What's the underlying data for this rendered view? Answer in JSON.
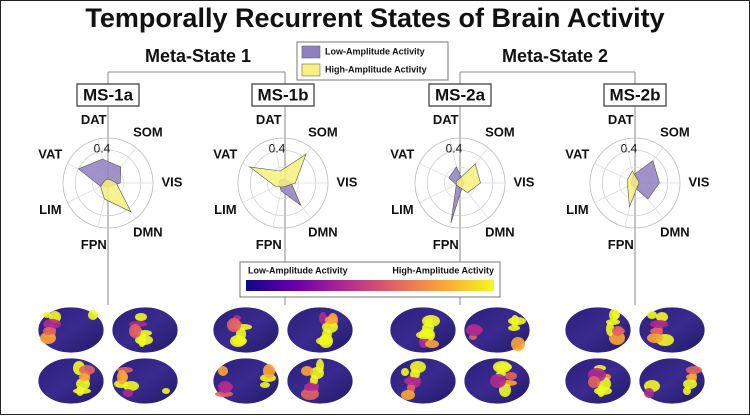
{
  "title": "Temporally Recurrent States of Brain Activity",
  "meta_states": [
    "Meta-State 1",
    "Meta-State 2"
  ],
  "legend": [
    {
      "name": "Low-Amplitude Activity",
      "color": "#9180bf"
    },
    {
      "name": "High-Amplitude Activity",
      "color": "#f6f17e"
    }
  ],
  "colorbar": {
    "low_label": "Low-Amplitude Activity",
    "high_label": "High-Amplitude Activity",
    "colors": [
      "#0d0887",
      "#6a00a8",
      "#b12a90",
      "#e16462",
      "#fca636",
      "#f0f921"
    ]
  },
  "chart_data": [
    {
      "type": "radar",
      "title": "MS-1a",
      "categories": [
        "DAT",
        "SOM",
        "VIS",
        "DMN",
        "FPN",
        "LIM",
        "VAT"
      ],
      "rlim": [
        0,
        0.55
      ],
      "rticks": [
        0.4
      ],
      "series": [
        {
          "color": "#9180bf",
          "values": [
            0.3,
            0.25,
            0.15,
            0.05,
            0.05,
            0.1,
            0.4
          ]
        },
        {
          "color": "#f6f17e",
          "values": [
            0.05,
            0.05,
            0.1,
            0.45,
            0.2,
            0.1,
            0.05
          ]
        }
      ]
    },
    {
      "type": "radar",
      "title": "MS-1b",
      "categories": [
        "DAT",
        "SOM",
        "VIS",
        "DMN",
        "FPN",
        "LIM",
        "VAT"
      ],
      "rlim": [
        0,
        0.55
      ],
      "rticks": [
        0.4
      ],
      "series": [
        {
          "color": "#9180bf",
          "values": [
            0.05,
            0.05,
            0.1,
            0.35,
            0.1,
            0.05,
            0.05
          ]
        },
        {
          "color": "#f6f17e",
          "values": [
            0.15,
            0.45,
            0.15,
            0.05,
            0.05,
            0.1,
            0.45
          ]
        }
      ]
    },
    {
      "type": "radar",
      "title": "MS-2a",
      "categories": [
        "DAT",
        "SOM",
        "VIS",
        "DMN",
        "FPN",
        "LIM",
        "VAT"
      ],
      "rlim": [
        0,
        0.55
      ],
      "rticks": [
        0.4
      ],
      "series": [
        {
          "color": "#9180bf",
          "values": [
            0.2,
            0.05,
            0.05,
            0.05,
            0.5,
            0.05,
            0.15
          ]
        },
        {
          "color": "#f6f17e",
          "values": [
            0.05,
            0.3,
            0.25,
            0.15,
            0.05,
            0.05,
            0.05
          ]
        }
      ]
    },
    {
      "type": "radar",
      "title": "MS-2b",
      "categories": [
        "DAT",
        "SOM",
        "VIS",
        "DMN",
        "FPN",
        "LIM",
        "VAT"
      ],
      "rlim": [
        0,
        0.55
      ],
      "rticks": [
        0.4
      ],
      "series": [
        {
          "color": "#9180bf",
          "values": [
            0.1,
            0.35,
            0.3,
            0.25,
            0.05,
            0.05,
            0.05
          ]
        },
        {
          "color": "#f6f17e",
          "values": [
            0.15,
            0.05,
            0.05,
            0.05,
            0.3,
            0.1,
            0.1
          ]
        }
      ]
    }
  ]
}
